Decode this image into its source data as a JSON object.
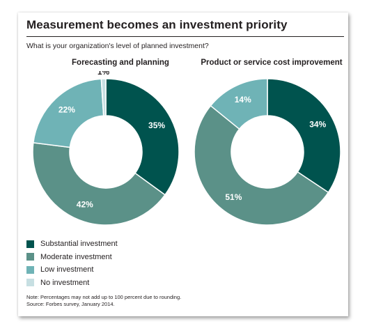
{
  "title": "Measurement becomes an investment priority",
  "subtitle": "What is your organization's level of planned investment?",
  "legend": [
    {
      "label": "Substantial investment",
      "color": "#00534e"
    },
    {
      "label": "Moderate investment",
      "color": "#5b9188"
    },
    {
      "label": "Low investment",
      "color": "#6fb3b6"
    },
    {
      "label": "No investment",
      "color": "#c7dfe2"
    }
  ],
  "note": "Note: Percentages may not add up to 100 percent due to rounding.",
  "source": "Source: Forbes survey, January 2014.",
  "chart_data": [
    {
      "type": "pie",
      "donut": true,
      "title": "Forecasting and planning",
      "categories": [
        "Substantial investment",
        "Moderate investment",
        "Low investment",
        "No investment"
      ],
      "values": [
        35,
        42,
        22,
        1
      ],
      "labels": [
        "35%",
        "42%",
        "22%",
        "1%"
      ],
      "colors": [
        "#00534e",
        "#5b9188",
        "#6fb3b6",
        "#c7dfe2"
      ]
    },
    {
      "type": "pie",
      "donut": true,
      "title": "Product or service cost improvement",
      "categories": [
        "Substantial investment",
        "Moderate investment",
        "Low investment"
      ],
      "values": [
        34,
        51,
        14
      ],
      "labels": [
        "34%",
        "51%",
        "14%"
      ],
      "colors": [
        "#00534e",
        "#5b9188",
        "#6fb3b6"
      ]
    }
  ]
}
